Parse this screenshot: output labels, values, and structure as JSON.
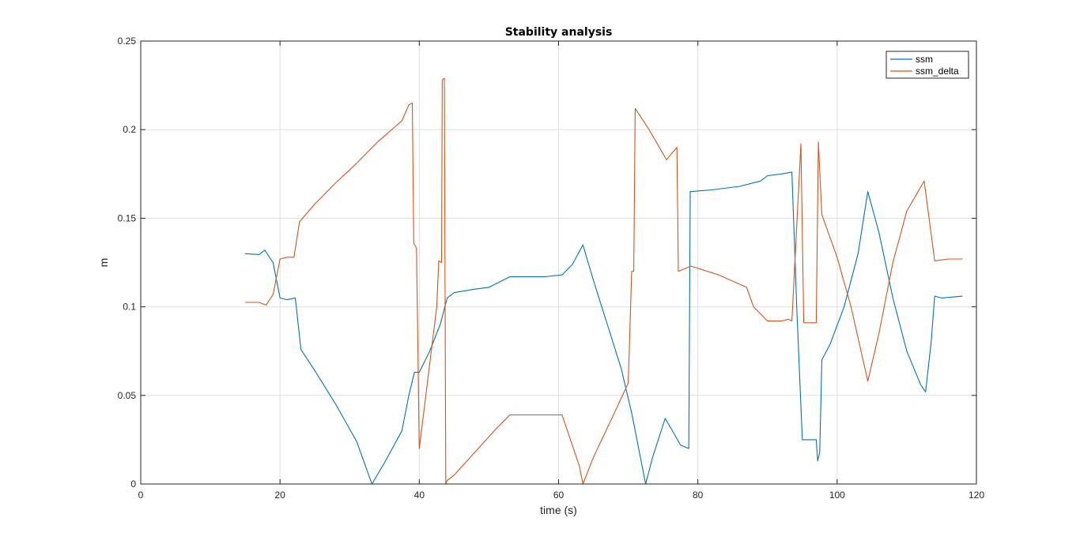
{
  "chart_data": {
    "type": "line",
    "title": "Stability analysis",
    "xlabel": "time (s)",
    "ylabel": "m",
    "xlim": [
      0,
      120
    ],
    "ylim": [
      0,
      0.25
    ],
    "xticks": [
      0,
      20,
      40,
      60,
      80,
      100,
      120
    ],
    "yticks": [
      0,
      0.05,
      0.1,
      0.15,
      0.2,
      0.25
    ],
    "xtick_labels": [
      "0",
      "20",
      "40",
      "60",
      "80",
      "100",
      "120"
    ],
    "ytick_labels": [
      "0",
      "0.05",
      "0.1",
      "0.15",
      "0.2",
      "0.25"
    ],
    "grid": true,
    "legend_position": "top-right",
    "series": [
      {
        "name": "ssm",
        "color": "#0072BD",
        "points": [
          [
            15.0,
            0.13
          ],
          [
            17.0,
            0.1295
          ],
          [
            17.8,
            0.132
          ],
          [
            19.0,
            0.125
          ],
          [
            20.0,
            0.105
          ],
          [
            21.0,
            0.104
          ],
          [
            22.2,
            0.105
          ],
          [
            23.0,
            0.076
          ],
          [
            25.0,
            0.064
          ],
          [
            28.0,
            0.045
          ],
          [
            31.0,
            0.024
          ],
          [
            33.2,
            0.0
          ],
          [
            35.0,
            0.012
          ],
          [
            37.5,
            0.03
          ],
          [
            38.5,
            0.05
          ],
          [
            39.3,
            0.063
          ],
          [
            40.0,
            0.063
          ],
          [
            41.5,
            0.075
          ],
          [
            43.0,
            0.09
          ],
          [
            44.0,
            0.105
          ],
          [
            45.0,
            0.108
          ],
          [
            48.0,
            0.11
          ],
          [
            50.0,
            0.111
          ],
          [
            53.0,
            0.117
          ],
          [
            55.0,
            0.117
          ],
          [
            58.0,
            0.117
          ],
          [
            60.5,
            0.118
          ],
          [
            62.0,
            0.124
          ],
          [
            63.5,
            0.135
          ],
          [
            65.0,
            0.115
          ],
          [
            67.0,
            0.09
          ],
          [
            69.0,
            0.065
          ],
          [
            70.5,
            0.04
          ],
          [
            71.5,
            0.02
          ],
          [
            72.5,
            0.0
          ],
          [
            73.5,
            0.015
          ],
          [
            75.3,
            0.037
          ],
          [
            76.5,
            0.029
          ],
          [
            77.5,
            0.022
          ],
          [
            78.7,
            0.02
          ],
          [
            78.9,
            0.165
          ],
          [
            82.0,
            0.166
          ],
          [
            86.0,
            0.168
          ],
          [
            89.0,
            0.171
          ],
          [
            90.0,
            0.174
          ],
          [
            92.0,
            0.175
          ],
          [
            93.5,
            0.176
          ],
          [
            94.2,
            0.1
          ],
          [
            95.0,
            0.025
          ],
          [
            96.0,
            0.025
          ],
          [
            97.0,
            0.025
          ],
          [
            97.2,
            0.013
          ],
          [
            97.5,
            0.018
          ],
          [
            97.8,
            0.07
          ],
          [
            99.0,
            0.079
          ],
          [
            101.0,
            0.1
          ],
          [
            103.0,
            0.13
          ],
          [
            104.4,
            0.165
          ],
          [
            106.0,
            0.142
          ],
          [
            108.0,
            0.105
          ],
          [
            110.0,
            0.075
          ],
          [
            112.0,
            0.056
          ],
          [
            112.7,
            0.052
          ],
          [
            113.5,
            0.08
          ],
          [
            114.0,
            0.106
          ],
          [
            115.0,
            0.105
          ],
          [
            118.0,
            0.106
          ]
        ]
      },
      {
        "name": "ssm_delta",
        "color": "#D95319",
        "points": [
          [
            15.0,
            0.1025
          ],
          [
            17.0,
            0.1025
          ],
          [
            18.0,
            0.101
          ],
          [
            19.0,
            0.107
          ],
          [
            20.0,
            0.127
          ],
          [
            21.0,
            0.128
          ],
          [
            22.0,
            0.128
          ],
          [
            22.8,
            0.148
          ],
          [
            25.0,
            0.158
          ],
          [
            28.0,
            0.17
          ],
          [
            31.0,
            0.181
          ],
          [
            34.0,
            0.193
          ],
          [
            37.5,
            0.205
          ],
          [
            38.5,
            0.214
          ],
          [
            39.0,
            0.215
          ],
          [
            39.2,
            0.136
          ],
          [
            39.6,
            0.133
          ],
          [
            40.0,
            0.02
          ],
          [
            42.5,
            0.1
          ],
          [
            42.8,
            0.126
          ],
          [
            43.2,
            0.125
          ],
          [
            43.3,
            0.228
          ],
          [
            43.6,
            0.229
          ],
          [
            43.8,
            0.0
          ],
          [
            44.0,
            0.002
          ],
          [
            45.0,
            0.005
          ],
          [
            48.0,
            0.018
          ],
          [
            51.0,
            0.031
          ],
          [
            53.0,
            0.039
          ],
          [
            56.0,
            0.039
          ],
          [
            60.5,
            0.039
          ],
          [
            63.0,
            0.01
          ],
          [
            63.5,
            0.0
          ],
          [
            65.0,
            0.015
          ],
          [
            68.0,
            0.04
          ],
          [
            70.0,
            0.057
          ],
          [
            70.5,
            0.12
          ],
          [
            70.8,
            0.12
          ],
          [
            71.0,
            0.212
          ],
          [
            73.0,
            0.2
          ],
          [
            75.5,
            0.183
          ],
          [
            77.0,
            0.19
          ],
          [
            77.2,
            0.12
          ],
          [
            79.0,
            0.123
          ],
          [
            83.0,
            0.118
          ],
          [
            87.0,
            0.111
          ],
          [
            88.0,
            0.1
          ],
          [
            90.0,
            0.092
          ],
          [
            92.0,
            0.092
          ],
          [
            93.0,
            0.093
          ],
          [
            93.5,
            0.092
          ],
          [
            94.8,
            0.192
          ],
          [
            95.2,
            0.091
          ],
          [
            97.0,
            0.091
          ],
          [
            97.3,
            0.193
          ],
          [
            97.8,
            0.152
          ],
          [
            100.0,
            0.128
          ],
          [
            102.0,
            0.1
          ],
          [
            104.0,
            0.065
          ],
          [
            104.4,
            0.058
          ],
          [
            106.0,
            0.085
          ],
          [
            108.0,
            0.125
          ],
          [
            110.0,
            0.154
          ],
          [
            112.5,
            0.171
          ],
          [
            114.0,
            0.126
          ],
          [
            116.0,
            0.127
          ],
          [
            118.0,
            0.127
          ]
        ]
      }
    ]
  }
}
